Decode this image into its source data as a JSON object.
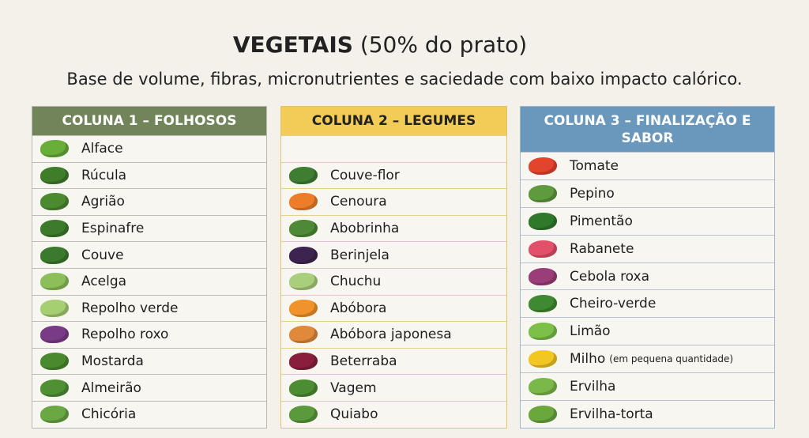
{
  "title": {
    "bold": "VEGETAIS",
    "rest": " (50% do prato)"
  },
  "subtitle": "Base de volume, fibras, micronutrientes e saciedade com baixo impacto calórico.",
  "columns": [
    {
      "header": "COLUNA 1 – FOLHOSOS",
      "items": [
        {
          "label": "Alface",
          "icon": "lettuce-icon",
          "color": "#6aae3a"
        },
        {
          "label": "Rúcula",
          "icon": "arugula-icon",
          "color": "#3f7d2a"
        },
        {
          "label": "Agrião",
          "icon": "watercress-icon",
          "color": "#4c8a30"
        },
        {
          "label": "Espinafre",
          "icon": "spinach-icon",
          "color": "#3e7a2b"
        },
        {
          "label": "Couve",
          "icon": "kale-icon",
          "color": "#3b7a2e"
        },
        {
          "label": "Acelga",
          "icon": "chard-icon",
          "color": "#8cbf5a"
        },
        {
          "label": "Repolho verde",
          "icon": "green-cabbage-icon",
          "color": "#a6cf72"
        },
        {
          "label": "Repolho roxo",
          "icon": "red-cabbage-icon",
          "color": "#7a3b86"
        },
        {
          "label": "Mostarda",
          "icon": "mustard-greens-icon",
          "color": "#4a8a2f"
        },
        {
          "label": "Almeirão",
          "icon": "chicory-leaf-icon",
          "color": "#4f9035"
        },
        {
          "label": "Chicória",
          "icon": "endive-icon",
          "color": "#6aa844"
        }
      ]
    },
    {
      "header": "COLUNA 2 – LEGUMES",
      "items": [
        {
          "label": "Couve-flor",
          "icon": "cauliflower-icon",
          "color": "#3f7d33"
        },
        {
          "label": "Cenoura",
          "icon": "carrot-icon",
          "color": "#ee7d2a"
        },
        {
          "label": "Abobrinha",
          "icon": "zucchini-icon",
          "color": "#4e8a35"
        },
        {
          "label": "Berinjela",
          "icon": "eggplant-icon",
          "color": "#3d2450"
        },
        {
          "label": "Chuchu",
          "icon": "chayote-icon",
          "color": "#a9cf7c"
        },
        {
          "label": "Abóbora",
          "icon": "pumpkin-icon",
          "color": "#f0932b"
        },
        {
          "label": "Abóbora japonesa",
          "icon": "kabocha-icon",
          "color": "#e0893a"
        },
        {
          "label": "Beterraba",
          "icon": "beet-icon",
          "color": "#8a1f3c"
        },
        {
          "label": "Vagem",
          "icon": "green-bean-icon",
          "color": "#4c8d33"
        },
        {
          "label": "Quiabo",
          "icon": "okra-icon",
          "color": "#5a9a3c"
        }
      ]
    },
    {
      "header": "COLUNA 3 – FINALIZAÇÃO E SABOR",
      "items": [
        {
          "label": "Tomate",
          "icon": "tomato-icon",
          "color": "#e2442c"
        },
        {
          "label": "Pepino",
          "icon": "cucumber-icon",
          "color": "#5e9a3e"
        },
        {
          "label": "Pimentão",
          "icon": "bell-pepper-icon",
          "color": "#2f7a2a"
        },
        {
          "label": "Rabanete",
          "icon": "radish-icon",
          "color": "#e2506a"
        },
        {
          "label": "Cebola roxa",
          "icon": "red-onion-icon",
          "color": "#9a3d78"
        },
        {
          "label": "Cheiro-verde",
          "icon": "herbs-icon",
          "color": "#3f8a30"
        },
        {
          "label": "Limão",
          "icon": "lime-icon",
          "color": "#7cc04a"
        },
        {
          "label": "Milho",
          "note": "(em pequena quantidade)",
          "icon": "corn-icon",
          "color": "#f2c623"
        },
        {
          "label": "Ervilha",
          "icon": "peas-icon",
          "color": "#7ab84a"
        },
        {
          "label": "Ervilha-torta",
          "icon": "snow-pea-icon",
          "color": "#6aa83e"
        }
      ]
    }
  ]
}
